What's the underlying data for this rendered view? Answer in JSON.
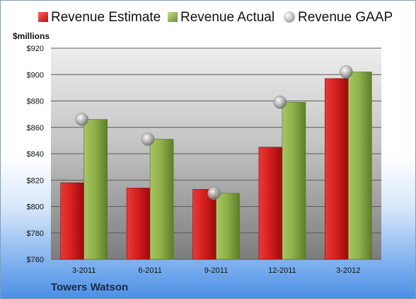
{
  "legend": [
    {
      "label": "Revenue Estimate",
      "icon": "red-square-icon",
      "color": "#cc1b1b"
    },
    {
      "label": "Revenue Actual",
      "icon": "green-square-icon",
      "color": "#8fb14a"
    },
    {
      "label": "Revenue GAAP",
      "icon": "gray-sphere-icon",
      "color": "#a8a8a8"
    }
  ],
  "unit_label": "$millions",
  "company": "Towers Watson",
  "chart_data": {
    "type": "bar",
    "categories": [
      "3-2011",
      "6-2011",
      "9-2011",
      "12-2011",
      "3-2012"
    ],
    "series": [
      {
        "name": "Revenue Estimate",
        "values": [
          818,
          814,
          813,
          845,
          897
        ],
        "color": "#cc1b1b"
      },
      {
        "name": "Revenue Actual",
        "values": [
          866,
          851,
          810,
          879,
          902
        ],
        "color": "#8fb14a"
      },
      {
        "name": "Revenue GAAP",
        "values": [
          866,
          851,
          810,
          879,
          902
        ],
        "color": "#a8a8a8",
        "marker": "sphere"
      }
    ],
    "ylabel": "$millions",
    "ylim": [
      760,
      920
    ],
    "yticks": [
      760,
      780,
      800,
      820,
      840,
      860,
      880,
      900,
      920
    ],
    "ytick_labels": [
      "$760",
      "$780",
      "$800",
      "$820",
      "$840",
      "$860",
      "$880",
      "$900",
      "$920"
    ],
    "grid": true,
    "legend_position": "top"
  }
}
